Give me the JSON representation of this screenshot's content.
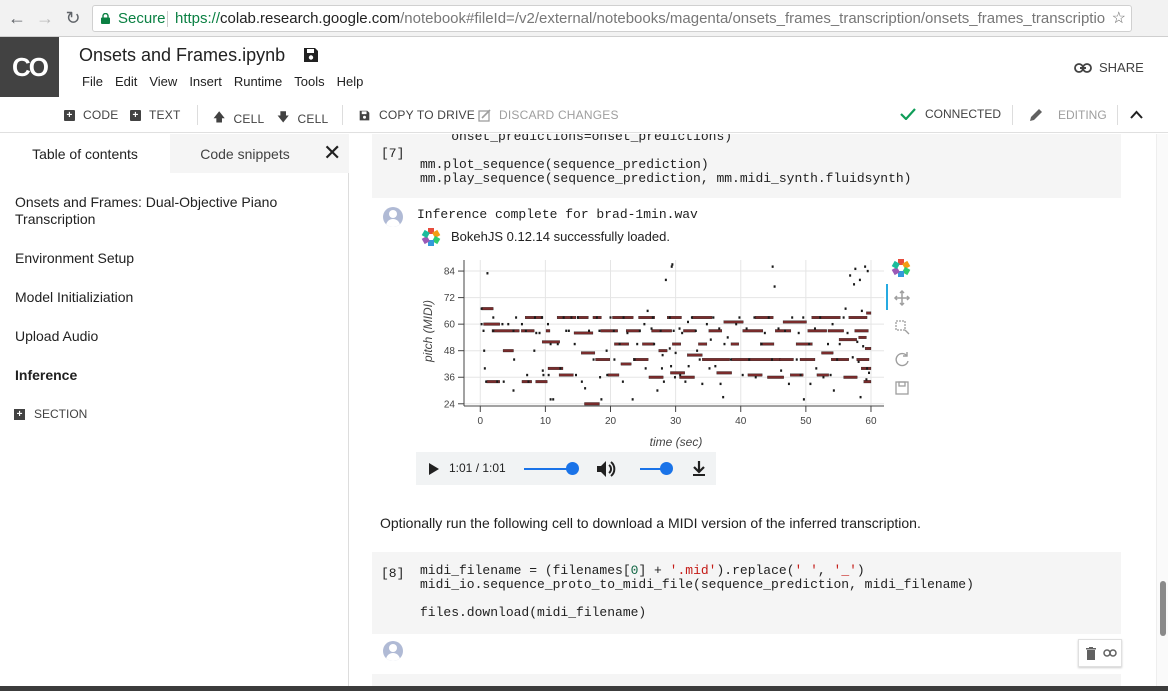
{
  "browser": {
    "secure_label": "Secure",
    "url_scheme": "https://",
    "url_host": "colab.research.google.com",
    "url_path": "/notebook#fileId=/v2/external/notebooks/magenta/onsets_frames_transcription/onsets_frames_transcriptio…"
  },
  "app": {
    "logo": "CO",
    "title": "Onsets and Frames.ipynb",
    "menus": [
      "File",
      "Edit",
      "View",
      "Insert",
      "Runtime",
      "Tools",
      "Help"
    ],
    "share_label": "SHARE"
  },
  "toolbar": {
    "code_label": "CODE",
    "text_label": "TEXT",
    "cell_up_label": "CELL",
    "cell_down_label": "CELL",
    "copy_drive_label": "COPY TO DRIVE",
    "discard_label": "DISCARD CHANGES",
    "connected_label": "CONNECTED",
    "editing_label": "EDITING"
  },
  "sidebar": {
    "tabs": [
      "Table of contents",
      "Code snippets"
    ],
    "items": [
      {
        "label": "Onsets and Frames: Dual-Objective Piano Transcription",
        "bold": false
      },
      {
        "label": "Environment Setup",
        "bold": false
      },
      {
        "label": "Model Initializiation",
        "bold": false
      },
      {
        "label": "Upload Audio",
        "bold": false
      },
      {
        "label": "Inference",
        "bold": true
      }
    ],
    "section_label": "SECTION"
  },
  "cells": {
    "cell7": {
      "prompt": "[7]",
      "line_top": "    onset_predictions=onset_predictions)",
      "line1": "mm.plot_sequence(sequence_prediction)",
      "line2": "mm.play_sequence(sequence_prediction, mm.midi_synth.fluidsynth)"
    },
    "output": {
      "stdout": "Inference complete for brad-1min.wav",
      "bokeh_msg": "BokehJS 0.12.14 successfully loaded."
    },
    "text_cell": "Optionally run the following cell to download a MIDI version of the inferred transcription.",
    "cell8": {
      "prompt": "[8]",
      "l1_a": "midi_filename = (filenames[",
      "l1_num": "0",
      "l1_b": "] + ",
      "l1_str1": "'.mid'",
      "l1_c": ").replace(",
      "l1_str2": "' '",
      "l1_d": ", ",
      "l1_str3": "'_'",
      "l1_e": ")",
      "line2": "midi_io.sequence_proto_to_midi_file(sequence_prediction, midi_filename)",
      "line3": "files.download(midi_filename)"
    }
  },
  "audio_player": {
    "time": "1:01 / 1:01",
    "progress": 1.0,
    "volume": 0.75
  },
  "icons": {
    "back": "arrow-left-icon",
    "forward": "arrow-right-icon",
    "reload": "reload-icon",
    "lock": "lock-icon",
    "star": "star-icon",
    "save": "save-icon",
    "share": "link-icon",
    "connected": "check-icon",
    "editing": "pencil-icon",
    "collapse": "chevron-up-icon",
    "close": "close-icon",
    "delete": "trash-icon",
    "link": "link-icon",
    "bokeh_tools": [
      "bokeh-logo-icon",
      "pan-icon",
      "zoom-icon",
      "reset-icon",
      "save-icon"
    ]
  },
  "colors": {
    "connected_green": "#0f9d58",
    "secure_green": "#0b8043",
    "note_fill": "#7b2c2c",
    "slider_blue": "#1a73e8"
  },
  "chart_data": {
    "type": "scatter",
    "title": "",
    "xlabel": "time (sec)",
    "ylabel": "pitch (MIDI)",
    "xlim": [
      -2.5,
      62
    ],
    "ylim": [
      23,
      89
    ],
    "xticks": [
      0,
      10,
      20,
      30,
      40,
      50,
      60
    ],
    "yticks": [
      24,
      36,
      48,
      60,
      72,
      84
    ],
    "grid": true,
    "notes_description": "piano-roll of transcribed notes, pitch vs time",
    "series": [
      {
        "points": [
          [
            0.2,
            67
          ],
          [
            0.2,
            60
          ],
          [
            0.5,
            57
          ],
          [
            0.6,
            48
          ],
          [
            0.7,
            40
          ],
          [
            0.9,
            34
          ],
          [
            1.1,
            83
          ],
          [
            2,
            63
          ],
          [
            2,
            57
          ],
          [
            2.6,
            34
          ],
          [
            3.4,
            60
          ],
          [
            3.6,
            34
          ],
          [
            4.3,
            60
          ],
          [
            5.1,
            57
          ],
          [
            5.1,
            30
          ],
          [
            5.2,
            44
          ],
          [
            5.5,
            63
          ],
          [
            6.4,
            60
          ],
          [
            7,
            57
          ],
          [
            7.2,
            37
          ],
          [
            7.4,
            34
          ],
          [
            8.3,
            48
          ],
          [
            8.4,
            63
          ],
          [
            8.6,
            56
          ],
          [
            9.1,
            56
          ],
          [
            9.5,
            63
          ],
          [
            9.6,
            39
          ],
          [
            9.7,
            37
          ],
          [
            10.4,
            60
          ],
          [
            10.5,
            37
          ],
          [
            10.8,
            51
          ],
          [
            10.8,
            26
          ],
          [
            11.2,
            26
          ],
          [
            11.9,
            51
          ],
          [
            12.3,
            40
          ],
          [
            12.8,
            63
          ],
          [
            13.2,
            57
          ],
          [
            13.6,
            57
          ],
          [
            14,
            63
          ],
          [
            14.5,
            51
          ],
          [
            14.7,
            37
          ],
          [
            15,
            63
          ],
          [
            15.6,
            34
          ],
          [
            16.1,
            31
          ],
          [
            16.7,
            57
          ],
          [
            17.4,
            44
          ],
          [
            17.9,
            63
          ],
          [
            18.3,
            57
          ],
          [
            18.4,
            36
          ],
          [
            18.6,
            26
          ],
          [
            19.4,
            48
          ],
          [
            19.5,
            37
          ],
          [
            20,
            63
          ],
          [
            20.5,
            57
          ],
          [
            20.6,
            44
          ],
          [
            21.4,
            51
          ],
          [
            21.9,
            34
          ],
          [
            22,
            63
          ],
          [
            22.6,
            56
          ],
          [
            23.4,
            26
          ],
          [
            23.7,
            44
          ],
          [
            24.1,
            51
          ],
          [
            24.5,
            57
          ],
          [
            25.2,
            60
          ],
          [
            25.4,
            40
          ],
          [
            25.7,
            66
          ],
          [
            26.3,
            58
          ],
          [
            26.5,
            63
          ],
          [
            26.7,
            51
          ],
          [
            27.2,
            30
          ],
          [
            27.7,
            57
          ],
          [
            27.9,
            40
          ],
          [
            28,
            46
          ],
          [
            28.2,
            34
          ],
          [
            28.5,
            80
          ],
          [
            29.1,
            63
          ],
          [
            29.1,
            49
          ],
          [
            29.3,
            41
          ],
          [
            29.4,
            86
          ],
          [
            29.5,
            87
          ],
          [
            29.7,
            57
          ],
          [
            29.9,
            36
          ],
          [
            30,
            47
          ],
          [
            30.6,
            58
          ],
          [
            30.7,
            37
          ],
          [
            31,
            56
          ],
          [
            31.5,
            34
          ],
          [
            31.9,
            61
          ],
          [
            32,
            41
          ],
          [
            32.5,
            63
          ],
          [
            33.1,
            57
          ],
          [
            33.3,
            48
          ],
          [
            33.7,
            44
          ],
          [
            34.1,
            33
          ],
          [
            34.8,
            60
          ],
          [
            35.2,
            40
          ],
          [
            35.4,
            53
          ],
          [
            35.8,
            63
          ],
          [
            36.1,
            41
          ],
          [
            36.7,
            58
          ],
          [
            36.9,
            33
          ],
          [
            37.3,
            27
          ],
          [
            37.5,
            51
          ],
          [
            38,
            54
          ],
          [
            38.5,
            44
          ],
          [
            39.3,
            60
          ],
          [
            39.8,
            63
          ],
          [
            40.3,
            37
          ],
          [
            40.9,
            58
          ],
          [
            41.3,
            44
          ],
          [
            42.1,
            63
          ],
          [
            42.3,
            36
          ],
          [
            43.2,
            51
          ],
          [
            43.7,
            56
          ],
          [
            44.3,
            63
          ],
          [
            44.8,
            44
          ],
          [
            44.9,
            86
          ],
          [
            45.2,
            77
          ],
          [
            45.8,
            58
          ],
          [
            46.2,
            39
          ],
          [
            46.8,
            57
          ],
          [
            47.4,
            33
          ],
          [
            47.9,
            63
          ],
          [
            48.6,
            44
          ],
          [
            48.9,
            56
          ],
          [
            49.2,
            37
          ],
          [
            49.6,
            63
          ],
          [
            49.7,
            26
          ],
          [
            50.5,
            51
          ],
          [
            50.7,
            33
          ],
          [
            51.4,
            58
          ],
          [
            51.6,
            40
          ],
          [
            52.2,
            63
          ],
          [
            52.7,
            36
          ],
          [
            53.4,
            51
          ],
          [
            53.8,
            37
          ],
          [
            54.1,
            60
          ],
          [
            54.3,
            30
          ],
          [
            54.8,
            44
          ],
          [
            55.2,
            51
          ],
          [
            55.8,
            63
          ],
          [
            56.1,
            67
          ],
          [
            56.4,
            56
          ],
          [
            56.8,
            82
          ],
          [
            57.2,
            45
          ],
          [
            57.4,
            78
          ],
          [
            57.6,
            85
          ],
          [
            57.9,
            52
          ],
          [
            58.1,
            43
          ],
          [
            58.3,
            80
          ],
          [
            58.4,
            27
          ],
          [
            58.6,
            66
          ],
          [
            58.8,
            50
          ],
          [
            59.1,
            86
          ],
          [
            59.3,
            35
          ],
          [
            59.4,
            40
          ],
          [
            59.5,
            84
          ],
          [
            59.7,
            38
          ]
        ]
      },
      {
        "segments": [
          [
            0.2,
            2,
            67
          ],
          [
            0.5,
            3,
            60
          ],
          [
            1.8,
            6,
            57
          ],
          [
            6.3,
            8.3,
            57
          ],
          [
            1,
            3,
            34
          ],
          [
            3.5,
            5.1,
            48
          ],
          [
            6.4,
            7.9,
            34
          ],
          [
            6.9,
            9.6,
            63
          ],
          [
            8.5,
            10.3,
            34
          ],
          [
            9.5,
            12.2,
            52
          ],
          [
            10.4,
            12.7,
            40
          ],
          [
            10.1,
            10.7,
            57
          ],
          [
            11.8,
            14.7,
            63
          ],
          [
            12.1,
            14.3,
            37
          ],
          [
            14.4,
            17.3,
            56
          ],
          [
            14.9,
            16.6,
            63
          ],
          [
            15.5,
            17.6,
            47
          ],
          [
            16,
            18.3,
            24
          ],
          [
            17.3,
            18.6,
            63
          ],
          [
            17.7,
            19.9,
            44
          ],
          [
            18.5,
            21.1,
            57
          ],
          [
            19.6,
            21.3,
            37
          ],
          [
            20.3,
            23.5,
            63
          ],
          [
            20.6,
            22.8,
            51
          ],
          [
            21.6,
            23.2,
            42
          ],
          [
            22.4,
            24.6,
            57
          ],
          [
            23.5,
            25.8,
            44
          ],
          [
            24.3,
            26.8,
            63
          ],
          [
            24.9,
            26.7,
            51
          ],
          [
            25.9,
            28.1,
            36
          ],
          [
            26.3,
            29.4,
            57
          ],
          [
            27.4,
            28.7,
            48
          ],
          [
            28.7,
            30.9,
            63
          ],
          [
            29.2,
            31.4,
            38
          ],
          [
            29.5,
            30.8,
            51
          ],
          [
            30.6,
            32.9,
            36
          ],
          [
            31.2,
            33.1,
            57
          ],
          [
            31.8,
            34.1,
            46
          ],
          [
            32.5,
            35.6,
            63
          ],
          [
            33.5,
            34.8,
            51
          ],
          [
            34.1,
            38.3,
            44
          ],
          [
            35.1,
            37.1,
            57
          ],
          [
            36.3,
            38.6,
            38
          ],
          [
            37.4,
            40.4,
            61
          ],
          [
            38.5,
            39.7,
            51
          ],
          [
            38.6,
            46.1,
            44
          ],
          [
            40.3,
            43.4,
            57
          ],
          [
            41.1,
            43.3,
            37
          ],
          [
            42.2,
            45,
            63
          ],
          [
            43,
            45.1,
            51
          ],
          [
            44.1,
            46.6,
            36
          ],
          [
            45.3,
            47.7,
            57
          ],
          [
            46,
            48.1,
            44
          ],
          [
            46.5,
            50.1,
            61
          ],
          [
            47.6,
            49.6,
            37
          ],
          [
            48.5,
            51,
            51
          ],
          [
            49.1,
            51.4,
            44
          ],
          [
            50.3,
            53.2,
            57
          ],
          [
            50.9,
            55.3,
            63
          ],
          [
            51.7,
            53.5,
            37
          ],
          [
            52.4,
            54.2,
            47
          ],
          [
            53.4,
            55.8,
            57
          ],
          [
            53.9,
            56.6,
            44
          ],
          [
            55.1,
            57.8,
            53
          ],
          [
            55.8,
            57.9,
            36
          ],
          [
            56.6,
            59.4,
            63
          ],
          [
            57.5,
            59.6,
            57
          ],
          [
            57.8,
            59.7,
            44
          ],
          [
            58.1,
            59.3,
            54
          ],
          [
            58.5,
            60,
            40
          ],
          [
            58.9,
            60,
            34
          ],
          [
            59.1,
            60,
            49
          ],
          [
            59.3,
            60,
            65
          ]
        ]
      }
    ]
  }
}
